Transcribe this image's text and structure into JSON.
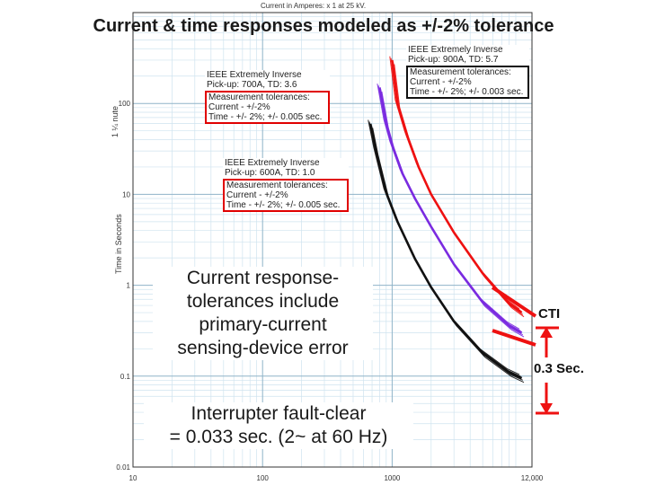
{
  "slide_title": "Current & time responses modeled as +/-2% tolerance",
  "callouts": {
    "current_tolerance_lines": [
      "Current response-",
      "tolerances include",
      "primary-current",
      "sensing-device error"
    ],
    "interrupter_lines": [
      "Interrupter fault-clear",
      "= 0.033 sec. (2~ at 60 Hz)"
    ],
    "cti_label": "CTI",
    "cti_value": "0.3 Sec."
  },
  "chart_data": {
    "type": "line",
    "scale": "log-log",
    "xlabel": "Current in Amperes: x 1 at 25 kV.",
    "ylabel": "Time in Seconds",
    "ylabel_top": "1 ¼ nute",
    "xlim": [
      10,
      12000
    ],
    "ylim": [
      0.01,
      1000
    ],
    "x_ticks": [
      "10",
      "100",
      "1000",
      "12,000"
    ],
    "y_ticks": [
      "0.01",
      "0.1",
      "1",
      "10",
      "100"
    ],
    "grid": true,
    "series": [
      {
        "name": "IEEE Extremely Inverse Pick-up: 600A, TD: 1.0",
        "color": "#111111",
        "x": [
          680,
          750,
          900,
          1100,
          1500,
          2000,
          3000,
          5000,
          8000,
          10000
        ],
        "y": [
          60,
          30,
          10.5,
          5.0,
          1.95,
          0.95,
          0.4,
          0.18,
          0.11,
          0.095
        ]
      },
      {
        "name": "IEEE Extremely Inverse Pick-up: 700A, TD: 3.6",
        "color": "#7a2be0",
        "x": [
          800,
          900,
          1000,
          1200,
          1500,
          2000,
          3000,
          5000,
          8000,
          10000
        ],
        "y": [
          150,
          60,
          35,
          17,
          9,
          4.4,
          1.7,
          0.65,
          0.36,
          0.3
        ]
      },
      {
        "name": "IEEE Extremely Inverse Pick-up: 900A, TD: 5.7",
        "color": "#ee1111",
        "x": [
          1000,
          1100,
          1300,
          1600,
          2000,
          3000,
          5000,
          8000,
          10000
        ],
        "y": [
          300,
          100,
          45,
          20,
          10,
          3.8,
          1.35,
          0.63,
          0.5
        ]
      }
    ],
    "legends": [
      {
        "header": [
          "IEEE Extremely Inverse",
          "Pick-up: 900A, TD: 5.7"
        ],
        "tolerance": [
          "Measurement tolerances:",
          "Current - +/-2%",
          "Time - +/- 2%; +/- 0.003 sec."
        ]
      },
      {
        "header": [
          "IEEE Extremely Inverse",
          "Pick-up: 700A, TD: 3.6"
        ],
        "tolerance": [
          "Measurement tolerances:",
          "Current - +/-2%",
          "Time - +/- 2%; +/- 0.005 sec."
        ]
      },
      {
        "header": [
          "IEEE Extremely Inverse",
          "Pick-up: 600A, TD: 1.0"
        ],
        "tolerance": [
          "Measurement tolerances:",
          "Current - +/-2%",
          "Time - +/- 2%; +/- 0.005 sec."
        ]
      }
    ]
  }
}
